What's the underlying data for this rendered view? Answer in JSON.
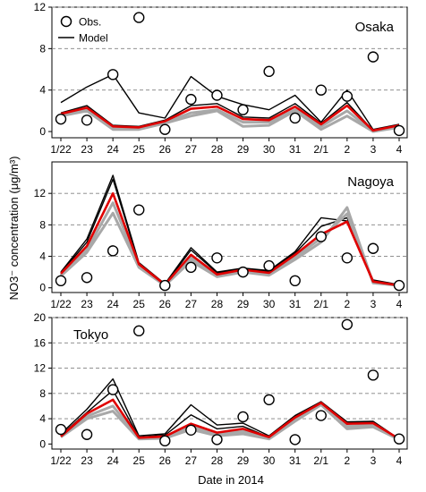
{
  "figure": {
    "ylabel": "NO3⁻ concentration (μg/m³)",
    "xlabel": "Date in 2014",
    "legend": {
      "obs": "Obs.",
      "model": "Model"
    }
  },
  "colors": {
    "obs": "#000000",
    "model": "#000000",
    "ensemble": "#a8a8a8",
    "highlight": "#e00000",
    "grid": "#808080"
  },
  "chart_data": [
    {
      "type": "line",
      "title": "Osaka",
      "categories": [
        "1/22",
        "23",
        "24",
        "25",
        "26",
        "27",
        "28",
        "29",
        "30",
        "31",
        "2/1",
        "2",
        "3",
        "4"
      ],
      "yticks": [
        0,
        4,
        8,
        12
      ],
      "ylim": [
        -0.6,
        12
      ],
      "grid": true,
      "legend_position": "top-left",
      "series": [
        {
          "name": "Obs.",
          "values": [
            1.2,
            1.1,
            5.5,
            11.0,
            0.2,
            3.1,
            3.5,
            2.1,
            5.8,
            1.3,
            4.0,
            3.4,
            7.2,
            0.1
          ]
        },
        {
          "name": "Model",
          "values": [
            1.7,
            2.3,
            0.5,
            0.4,
            1.0,
            2.2,
            2.4,
            1.2,
            1.1,
            2.4,
            0.7,
            2.5,
            0.1,
            0.6
          ]
        }
      ],
      "model_envelope": [
        [
          2.8,
          4.3,
          5.5,
          1.8,
          1.3,
          5.3,
          3.4,
          2.6,
          2.1,
          3.5,
          0.9,
          4.0,
          0.2,
          0.7
        ],
        [
          1.8,
          2.5,
          0.6,
          0.5,
          1.1,
          2.5,
          2.7,
          1.4,
          1.3,
          2.7,
          0.8,
          2.8,
          0.1,
          0.6
        ],
        [
          1.5,
          2.0,
          0.2,
          0.2,
          0.8,
          1.5,
          2.0,
          0.5,
          0.6,
          2.0,
          0.2,
          1.5,
          0.0,
          0.4
        ],
        [
          1.6,
          2.1,
          0.3,
          0.3,
          0.9,
          1.8,
          2.1,
          0.9,
          0.9,
          2.1,
          0.5,
          2.0,
          0.0,
          0.5
        ]
      ]
    },
    {
      "type": "line",
      "title": "Nagoya",
      "categories": [
        "1/22",
        "23",
        "24",
        "25",
        "26",
        "27",
        "28",
        "29",
        "30",
        "31",
        "2/1",
        "2",
        "3",
        "4"
      ],
      "yticks": [
        0,
        4,
        8,
        12
      ],
      "ylim": [
        -0.6,
        16
      ],
      "grid": true,
      "series": [
        {
          "name": "Obs.",
          "values": [
            0.9,
            1.3,
            4.7,
            9.9,
            0.3,
            2.6,
            3.8,
            2.0,
            2.8,
            0.9,
            6.5,
            3.8,
            5.0,
            0.3
          ]
        },
        {
          "name": "Model",
          "values": [
            1.8,
            5.3,
            12.0,
            3.0,
            0.4,
            4.2,
            1.7,
            2.3,
            1.9,
            4.2,
            6.8,
            8.4,
            0.8,
            0.3
          ]
        }
      ],
      "model_envelope": [
        [
          2.0,
          6.2,
          14.3,
          3.2,
          0.5,
          5.1,
          2.0,
          2.5,
          2.2,
          4.6,
          8.9,
          8.5,
          1.0,
          0.4
        ],
        [
          1.9,
          5.8,
          13.8,
          3.1,
          0.4,
          4.8,
          1.9,
          2.4,
          2.1,
          4.4,
          7.8,
          8.9,
          0.9,
          0.3
        ],
        [
          1.5,
          4.5,
          9.5,
          2.6,
          0.3,
          3.4,
          1.4,
          2.0,
          1.6,
          3.6,
          5.8,
          10.2,
          0.6,
          0.3
        ],
        [
          1.6,
          4.8,
          10.8,
          2.8,
          0.3,
          3.8,
          1.5,
          2.1,
          1.7,
          3.9,
          6.3,
          9.4,
          0.7,
          0.3
        ]
      ]
    },
    {
      "type": "line",
      "title": "Tokyo",
      "categories": [
        "1/22",
        "23",
        "24",
        "25",
        "26",
        "27",
        "28",
        "29",
        "30",
        "31",
        "2/1",
        "2",
        "3",
        "4"
      ],
      "yticks": [
        0,
        4,
        8,
        12,
        16,
        20
      ],
      "ylim": [
        -0.8,
        20
      ],
      "grid": true,
      "series": [
        {
          "name": "Obs.",
          "values": [
            2.3,
            1.5,
            8.6,
            17.9,
            0.5,
            2.2,
            0.7,
            4.3,
            7.0,
            0.7,
            4.5,
            18.9,
            10.9,
            0.8
          ]
        },
        {
          "name": "Model",
          "values": [
            1.2,
            4.8,
            7.0,
            1.0,
            1.2,
            3.2,
            1.8,
            2.4,
            1.1,
            4.2,
            6.5,
            3.2,
            3.3,
            0.8
          ]
        }
      ],
      "model_envelope": [
        [
          1.6,
          5.5,
          10.3,
          1.3,
          1.6,
          6.2,
          3.0,
          3.3,
          1.3,
          4.5,
          6.7,
          3.5,
          3.6,
          0.8
        ],
        [
          1.4,
          5.0,
          8.5,
          1.1,
          1.4,
          4.6,
          2.4,
          2.8,
          1.1,
          4.3,
          6.6,
          3.3,
          3.5,
          0.8
        ],
        [
          1.1,
          4.0,
          5.2,
          0.8,
          0.9,
          2.3,
          1.3,
          1.6,
          0.8,
          3.6,
          6.2,
          2.4,
          2.7,
          0.7
        ],
        [
          1.2,
          4.4,
          6.0,
          0.9,
          1.0,
          2.8,
          1.5,
          2.0,
          0.9,
          3.9,
          6.3,
          2.8,
          3.0,
          0.7
        ]
      ]
    }
  ]
}
